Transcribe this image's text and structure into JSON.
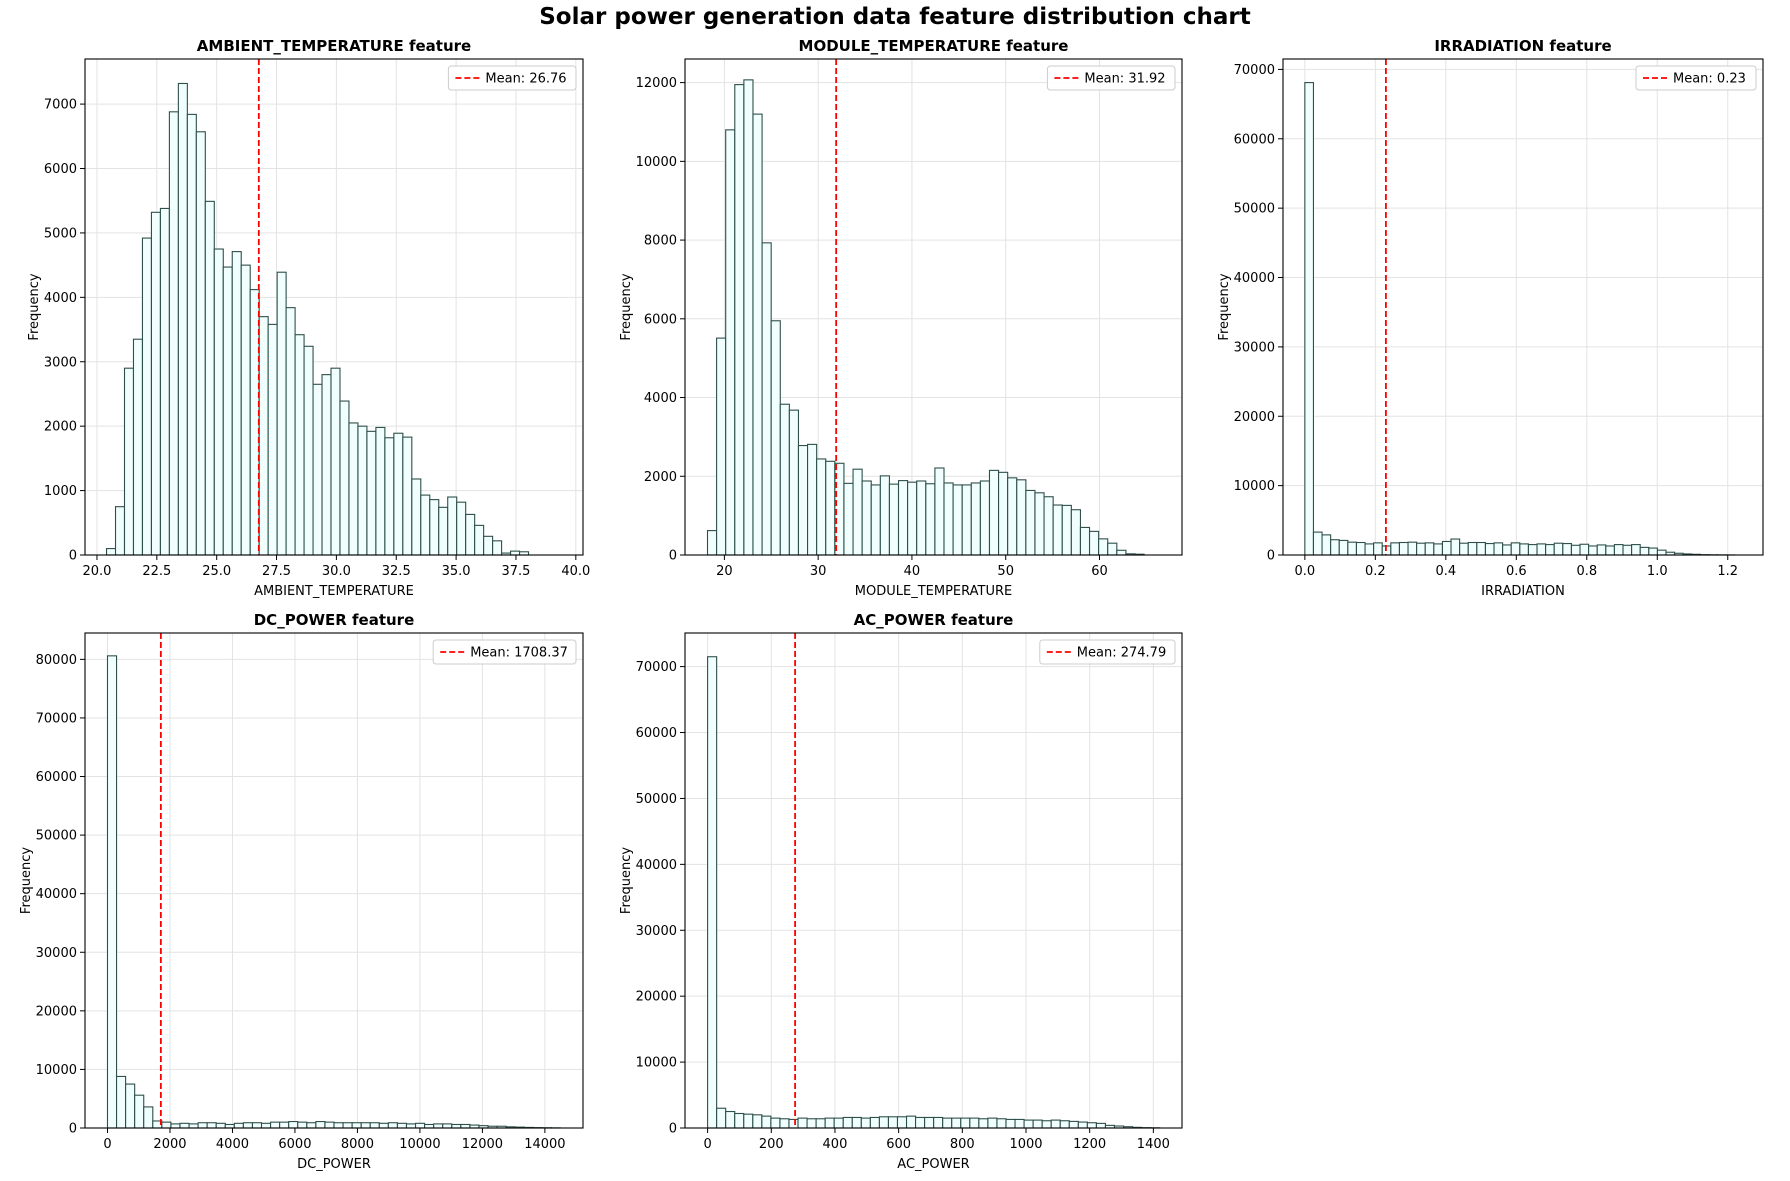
{
  "figure": {
    "suptitle": "Solar power generation data feature distribution chart"
  },
  "colors": {
    "bar_fill": "#f0fffe",
    "bar_edge": "#2f4f4a",
    "mean_line": "#ff0000",
    "grid": "#e3e3e3"
  },
  "chart_data": [
    {
      "type": "bar",
      "title": "AMBIENT_TEMPERATURE feature",
      "xlabel": "AMBIENT_TEMPERATURE",
      "ylabel": "Frequency",
      "xlim": [
        19.5,
        40.3
      ],
      "ylim": [
        0,
        7700
      ],
      "xticks": [
        20.0,
        22.5,
        25.0,
        27.5,
        30.0,
        32.5,
        35.0,
        37.5,
        40.0
      ],
      "xtick_labels": [
        "20.0",
        "22.5",
        "25.0",
        "27.5",
        "30.0",
        "32.5",
        "35.0",
        "37.5",
        "40.0"
      ],
      "yticks": [
        0,
        1000,
        2000,
        3000,
        4000,
        5000,
        6000,
        7000
      ],
      "ytick_labels": [
        "0",
        "1000",
        "2000",
        "3000",
        "4000",
        "5000",
        "6000",
        "7000"
      ],
      "bin_start": 20.4,
      "bin_width": 0.375,
      "values": [
        100,
        750,
        2900,
        3350,
        4920,
        5320,
        5380,
        6880,
        7320,
        6840,
        6570,
        5490,
        4750,
        4470,
        4710,
        4500,
        4120,
        3700,
        3580,
        4390,
        3840,
        3420,
        3240,
        2650,
        2800,
        2900,
        2390,
        2050,
        2000,
        1920,
        1980,
        1820,
        1890,
        1830,
        1180,
        930,
        860,
        740,
        900,
        820,
        630,
        460,
        290,
        220,
        30,
        60,
        50
      ],
      "mean": 26.76,
      "legend": "Mean: 26.76",
      "legend_loc": "upper right",
      "grid": true
    },
    {
      "type": "bar",
      "title": "MODULE_TEMPERATURE feature",
      "xlabel": "MODULE_TEMPERATURE",
      "ylabel": "Frequency",
      "xlim": [
        15.8,
        68.8
      ],
      "ylim": [
        0,
        12600
      ],
      "xticks": [
        20,
        30,
        40,
        50,
        60
      ],
      "xtick_labels": [
        "20",
        "30",
        "40",
        "50",
        "60"
      ],
      "yticks": [
        0,
        2000,
        4000,
        6000,
        8000,
        10000,
        12000
      ],
      "ytick_labels": [
        "0",
        "2000",
        "4000",
        "6000",
        "8000",
        "10000",
        "12000"
      ],
      "bin_start": 18.2,
      "bin_width": 0.97,
      "values": [
        620,
        5510,
        10800,
        11950,
        12070,
        11200,
        7930,
        5950,
        3830,
        3680,
        2780,
        2810,
        2440,
        2380,
        2330,
        1820,
        2180,
        1880,
        1780,
        2010,
        1800,
        1890,
        1850,
        1880,
        1810,
        2210,
        1830,
        1780,
        1780,
        1830,
        1880,
        2150,
        2100,
        1960,
        1910,
        1640,
        1580,
        1480,
        1270,
        1260,
        1150,
        700,
        600,
        410,
        300,
        120,
        30,
        20
      ],
      "mean": 31.92,
      "legend": "Mean: 31.92",
      "legend_loc": "upper right",
      "grid": true
    },
    {
      "type": "bar",
      "title": "IRRADIATION feature",
      "xlabel": "IRRADIATION",
      "ylabel": "Frequency",
      "xlim": [
        -0.062,
        1.3
      ],
      "ylim": [
        0,
        71500
      ],
      "xticks": [
        0.0,
        0.2,
        0.4,
        0.6,
        0.8,
        1.0,
        1.2
      ],
      "xtick_labels": [
        "0.0",
        "0.2",
        "0.4",
        "0.6",
        "0.8",
        "1.0",
        "1.2"
      ],
      "yticks": [
        0,
        10000,
        20000,
        30000,
        40000,
        50000,
        60000,
        70000
      ],
      "ytick_labels": [
        "0",
        "10000",
        "20000",
        "30000",
        "40000",
        "50000",
        "60000",
        "70000"
      ],
      "bin_start": 0.0,
      "bin_width": 0.0244,
      "values": [
        68100,
        3300,
        2900,
        2200,
        2100,
        1850,
        1800,
        1600,
        1750,
        1300,
        1750,
        1800,
        1850,
        1700,
        1750,
        1600,
        1950,
        2300,
        1700,
        1800,
        1800,
        1650,
        1750,
        1450,
        1750,
        1600,
        1500,
        1600,
        1500,
        1700,
        1650,
        1400,
        1550,
        1300,
        1450,
        1300,
        1500,
        1400,
        1500,
        1100,
        1000,
        700,
        400,
        250,
        150,
        100,
        50,
        30,
        20,
        10
      ],
      "mean": 0.23,
      "legend": "Mean: 0.23",
      "legend_loc": "upper right",
      "grid": true
    },
    {
      "type": "bar",
      "title": "DC_POWER feature",
      "xlabel": "DC_POWER",
      "ylabel": "Frequency",
      "xlim": [
        -720,
        15220
      ],
      "ylim": [
        0,
        84500
      ],
      "xticks": [
        0,
        2000,
        4000,
        6000,
        8000,
        10000,
        12000,
        14000
      ],
      "xtick_labels": [
        "0",
        "2000",
        "4000",
        "6000",
        "8000",
        "10000",
        "12000",
        "14000"
      ],
      "yticks": [
        0,
        10000,
        20000,
        30000,
        40000,
        50000,
        60000,
        70000,
        80000
      ],
      "ytick_labels": [
        "0",
        "10000",
        "20000",
        "30000",
        "40000",
        "50000",
        "60000",
        "70000",
        "80000"
      ],
      "bin_start": 0,
      "bin_width": 290,
      "values": [
        80600,
        8800,
        7500,
        5600,
        3600,
        1200,
        1000,
        700,
        800,
        700,
        900,
        900,
        800,
        600,
        800,
        900,
        900,
        800,
        1000,
        1000,
        1100,
        1000,
        900,
        1100,
        1000,
        900,
        900,
        900,
        900,
        900,
        800,
        900,
        800,
        700,
        800,
        600,
        700,
        700,
        600,
        600,
        500,
        400,
        300,
        300,
        200,
        150,
        100,
        60,
        40,
        20
      ],
      "mean": 1708.37,
      "legend": "Mean: 1708.37",
      "legend_loc": "upper right",
      "grid": true
    },
    {
      "type": "bar",
      "title": "AC_POWER feature",
      "xlabel": "AC_POWER",
      "ylabel": "Frequency",
      "xlim": [
        -71,
        1490
      ],
      "ylim": [
        0,
        75100
      ],
      "xticks": [
        0,
        200,
        400,
        600,
        800,
        1000,
        1200,
        1400
      ],
      "xtick_labels": [
        "0",
        "200",
        "400",
        "600",
        "800",
        "1000",
        "1200",
        "1400"
      ],
      "yticks": [
        0,
        10000,
        20000,
        30000,
        40000,
        50000,
        60000,
        70000
      ],
      "ytick_labels": [
        "0",
        "10000",
        "20000",
        "30000",
        "40000",
        "50000",
        "60000",
        "70000"
      ],
      "bin_start": 0,
      "bin_width": 28.4,
      "values": [
        71500,
        3000,
        2500,
        2200,
        2100,
        2000,
        1800,
        1500,
        1400,
        1300,
        1500,
        1400,
        1400,
        1500,
        1500,
        1600,
        1600,
        1500,
        1600,
        1700,
        1700,
        1700,
        1800,
        1600,
        1600,
        1600,
        1500,
        1500,
        1500,
        1500,
        1400,
        1500,
        1400,
        1300,
        1300,
        1200,
        1200,
        1100,
        1200,
        1100,
        1000,
        900,
        800,
        700,
        400,
        300,
        200,
        100,
        50,
        30
      ],
      "mean": 274.79,
      "legend": "Mean: 274.79",
      "legend_loc": "upper right",
      "grid": true
    }
  ]
}
